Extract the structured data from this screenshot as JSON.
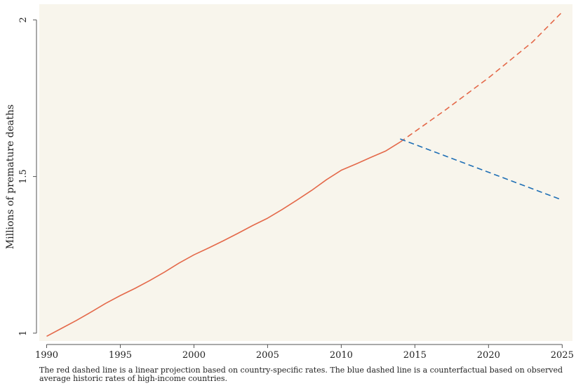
{
  "colors": {
    "panel_background": "#f8f5ec",
    "historical_line": "#e4694a",
    "projection_line": "#e4694a",
    "counterfactual_line": "#1f6fb5",
    "axis": "#555555"
  },
  "chart_data": {
    "type": "line",
    "title": "",
    "xlabel": "",
    "ylabel": "Millions of premature deaths",
    "xlim": [
      1989.5,
      2025.7
    ],
    "ylim": [
      0.975,
      2.05
    ],
    "xticks": [
      1990,
      1995,
      2000,
      2005,
      2010,
      2015,
      2020,
      2025
    ],
    "yticks": [
      1,
      1.5,
      2
    ],
    "ytick_labels": [
      "1",
      "1.5",
      "2"
    ],
    "grid": false,
    "series": [
      {
        "style": "solid",
        "color": "#e4694a",
        "x": [
          1990,
          1991,
          1992,
          1993,
          1994,
          1995,
          1996,
          1997,
          1998,
          1999,
          2000,
          2001,
          2002,
          2003,
          2004,
          2005,
          2006,
          2007,
          2008,
          2009,
          2010,
          2011,
          2012,
          2013,
          2014
        ],
        "y": [
          0.99,
          1.015,
          1.04,
          1.067,
          1.095,
          1.12,
          1.143,
          1.168,
          1.195,
          1.224,
          1.25,
          1.272,
          1.295,
          1.319,
          1.344,
          1.367,
          1.395,
          1.425,
          1.456,
          1.49,
          1.52,
          1.54,
          1.561,
          1.581,
          1.61
        ]
      },
      {
        "style": "dashed",
        "color": "#e4694a",
        "x": [
          2014,
          2017,
          2020,
          2023,
          2025
        ],
        "y": [
          1.61,
          1.71,
          1.815,
          1.93,
          2.025
        ]
      },
      {
        "style": "dashed",
        "color": "#1f6fb5",
        "x": [
          2014,
          2025
        ],
        "y": [
          1.62,
          1.425
        ]
      }
    ]
  },
  "footnote": "The red dashed line is a linear projection based on country-specific rates. The blue dashed line is a counterfactual based on observed average historic rates of high-income countries."
}
